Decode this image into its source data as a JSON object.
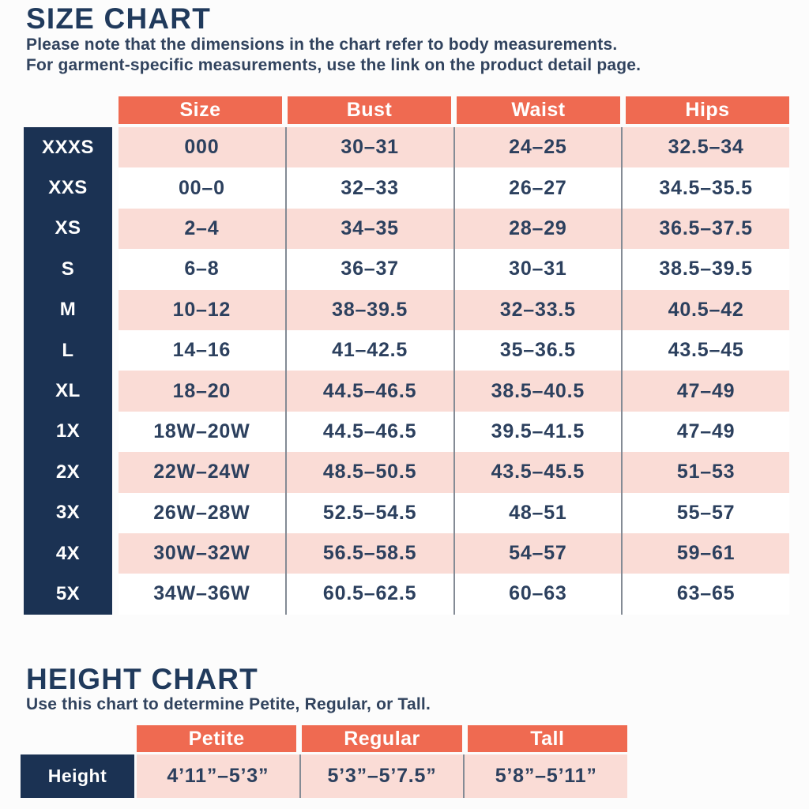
{
  "size_chart": {
    "title": "SIZE CHART",
    "note_line1": "Please note that the dimensions in the chart refer to body measurements.",
    "note_line2": "For garment-specific measurements, use the link on the product detail page.",
    "columns": {
      "size": "Size",
      "bust": "Bust",
      "waist": "Waist",
      "hips": "Hips"
    },
    "rows": [
      {
        "label": "XXXS",
        "size": "000",
        "bust": "30–31",
        "waist": "24–25",
        "hips": "32.5–34"
      },
      {
        "label": "XXS",
        "size": "00–0",
        "bust": "32–33",
        "waist": "26–27",
        "hips": "34.5–35.5"
      },
      {
        "label": "XS",
        "size": "2–4",
        "bust": "34–35",
        "waist": "28–29",
        "hips": "36.5–37.5"
      },
      {
        "label": "S",
        "size": "6–8",
        "bust": "36–37",
        "waist": "30–31",
        "hips": "38.5–39.5"
      },
      {
        "label": "M",
        "size": "10–12",
        "bust": "38–39.5",
        "waist": "32–33.5",
        "hips": "40.5–42"
      },
      {
        "label": "L",
        "size": "14–16",
        "bust": "41–42.5",
        "waist": "35–36.5",
        "hips": "43.5–45"
      },
      {
        "label": "XL",
        "size": "18–20",
        "bust": "44.5–46.5",
        "waist": "38.5–40.5",
        "hips": "47–49"
      },
      {
        "label": "1X",
        "size": "18W–20W",
        "bust": "44.5–46.5",
        "waist": "39.5–41.5",
        "hips": "47–49"
      },
      {
        "label": "2X",
        "size": "22W–24W",
        "bust": "48.5–50.5",
        "waist": "43.5–45.5",
        "hips": "51–53"
      },
      {
        "label": "3X",
        "size": "26W–28W",
        "bust": "52.5–54.5",
        "waist": "48–51",
        "hips": "55–57"
      },
      {
        "label": "4X",
        "size": "30W–32W",
        "bust": "56.5–58.5",
        "waist": "54–57",
        "hips": "59–61"
      },
      {
        "label": "5X",
        "size": "34W–36W",
        "bust": "60.5–62.5",
        "waist": "60–63",
        "hips": "63–65"
      }
    ]
  },
  "height_chart": {
    "title": "HEIGHT CHART",
    "note": "Use this chart to determine Petite, Regular, or Tall.",
    "columns": {
      "petite": "Petite",
      "regular": "Regular",
      "tall": "Tall"
    },
    "row_label": "Height",
    "values": {
      "petite": "4’11”–5’3”",
      "regular": "5’3”–5’7.5”",
      "tall": "5’8”–5’11”"
    }
  },
  "colors": {
    "header_coral": "#ef6a51",
    "row_pink": "#fadcd6",
    "row_white": "#ffffff",
    "label_navy": "#1b3253",
    "text_navy": "#2c405e",
    "divider_gray": "#848b95"
  }
}
